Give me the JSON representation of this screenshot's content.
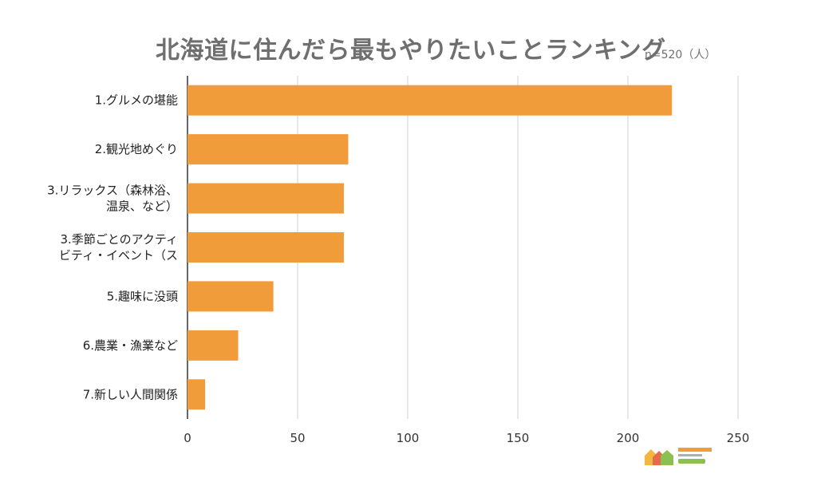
{
  "chart_data": {
    "type": "bar",
    "orientation": "horizontal",
    "title": "北海道に住んだら最もやりたいことランキング",
    "subtitle": "n=520（人）",
    "categories": [
      [
        "1.グルメの堪能"
      ],
      [
        "2.観光地めぐり"
      ],
      [
        "3.リラックス（森林浴、",
        "温泉、など）"
      ],
      [
        "3.季節ごとのアクティ",
        "ビティ・イベント（ス"
      ],
      [
        "5.趣味に没頭"
      ],
      [
        "6.農業・漁業など"
      ],
      [
        "7.新しい人間関係"
      ]
    ],
    "values": [
      220,
      73,
      71,
      71,
      39,
      23,
      8
    ],
    "xlim": [
      0,
      250
    ],
    "xticks": [
      0,
      50,
      100,
      150,
      200,
      250
    ],
    "grid": true,
    "bar_color": "#f09c3b",
    "grid_color": "#d0d0d0"
  }
}
